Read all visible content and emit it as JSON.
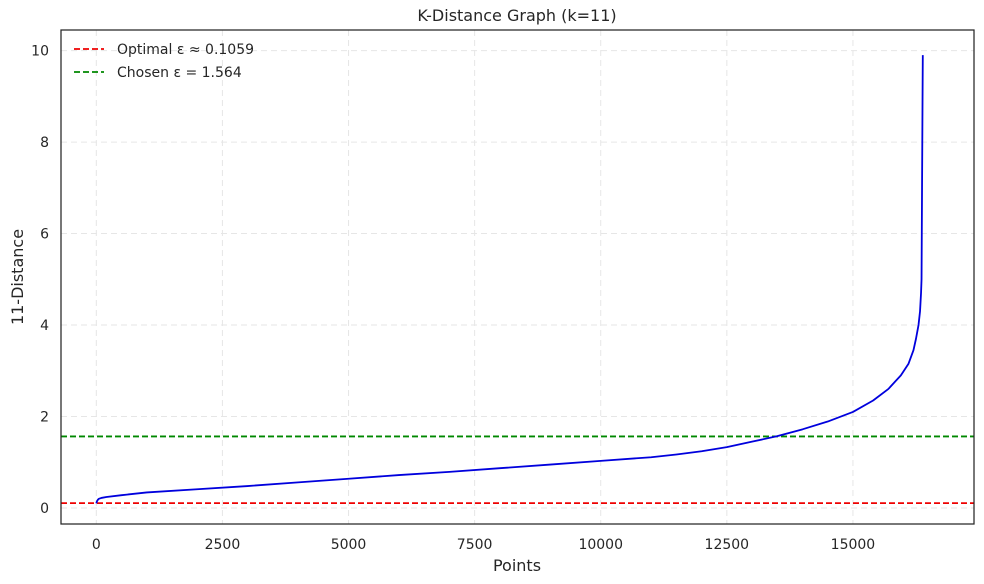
{
  "chart_data": {
    "type": "line",
    "title": "K-Distance Graph (k=11)",
    "xlabel": "Points",
    "ylabel": "11-Distance",
    "xlim": [
      -700,
      17400
    ],
    "ylim": [
      -0.35,
      10.45
    ],
    "xticks": [
      0,
      2500,
      5000,
      7500,
      10000,
      12500,
      15000
    ],
    "xtick_labels": [
      "0",
      "2500",
      "5000",
      "7500",
      "10000",
      "12500",
      "15000"
    ],
    "yticks": [
      0,
      2,
      4,
      6,
      8,
      10
    ],
    "ytick_labels": [
      "0",
      "2",
      "4",
      "6",
      "8",
      "10"
    ],
    "grid": true,
    "legend_position": "top-left",
    "series": [
      {
        "color": "#0000dd",
        "x": [
          0,
          10,
          30,
          50,
          100,
          200,
          500,
          1000,
          2000,
          3000,
          4000,
          5000,
          6000,
          7000,
          8000,
          9000,
          10000,
          11000,
          11500,
          12000,
          12500,
          13000,
          13500,
          14000,
          14500,
          15000,
          15400,
          15700,
          15950,
          16100,
          16200,
          16250,
          16300,
          16330,
          16350,
          16360,
          16365,
          16370,
          16375,
          16380,
          16385
        ],
        "y": [
          0.1,
          0.14,
          0.18,
          0.2,
          0.22,
          0.24,
          0.28,
          0.34,
          0.41,
          0.48,
          0.56,
          0.64,
          0.72,
          0.79,
          0.87,
          0.95,
          1.03,
          1.11,
          1.17,
          1.24,
          1.33,
          1.45,
          1.57,
          1.72,
          1.89,
          2.1,
          2.35,
          2.6,
          2.9,
          3.15,
          3.45,
          3.7,
          4.0,
          4.3,
          4.7,
          5.0,
          6.0,
          7.0,
          8.0,
          9.0,
          9.9
        ]
      }
    ],
    "reference_lines": [
      {
        "label": "Optimal ε ≈ 0.1059",
        "y": 0.1059,
        "color": "#ee0000",
        "style": "dashed"
      },
      {
        "label": "Chosen ε = 1.564",
        "y": 1.564,
        "color": "#008800",
        "style": "dashed"
      }
    ]
  }
}
